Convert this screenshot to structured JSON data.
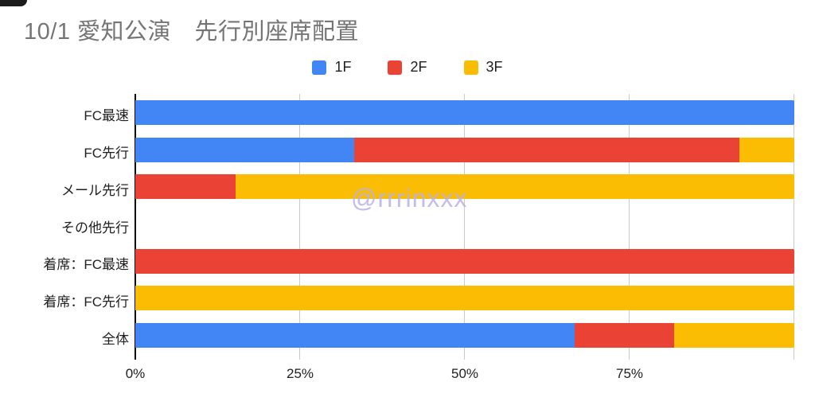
{
  "title": "10/1 愛知公演　先行別座席配置",
  "watermark": "@rrrinxxx",
  "legend": {
    "items": [
      {
        "label": "1F",
        "color": "#4285F4"
      },
      {
        "label": "2F",
        "color": "#EA4335"
      },
      {
        "label": "3F",
        "color": "#FBBC04"
      }
    ]
  },
  "chart_data": {
    "type": "bar",
    "orientation": "horizontal",
    "stacked": true,
    "unit": "percent",
    "title": "10/1 愛知公演　先行別座席配置",
    "categories": [
      "FC最速",
      "FC先行",
      "メール先行",
      "その他先行",
      "着席：FC最速",
      "着席：FC先行",
      "全体"
    ],
    "series": [
      {
        "name": "1F",
        "color": "#4285F4",
        "values": [
          100,
          33.2,
          0,
          0,
          0,
          0,
          66.7
        ]
      },
      {
        "name": "2F",
        "color": "#EA4335",
        "values": [
          0,
          58.5,
          15.2,
          0,
          100,
          0,
          15.1
        ]
      },
      {
        "name": "3F",
        "color": "#FBBC04",
        "values": [
          0,
          8.3,
          84.8,
          0,
          0,
          100,
          18.2
        ]
      }
    ],
    "xlabel": "",
    "ylabel": "",
    "xlim": [
      0,
      100
    ],
    "x_ticks": [
      "0%",
      "25%",
      "50%",
      "75%"
    ],
    "x_tick_values": [
      0,
      25,
      50,
      75
    ],
    "grid": true,
    "gridline_values": [
      25,
      50,
      75,
      100
    ],
    "legend_position": "top"
  },
  "colors": {
    "axis": "#000000",
    "gridline": "#cccccc",
    "title_text": "#757575",
    "label_text": "#212121"
  }
}
